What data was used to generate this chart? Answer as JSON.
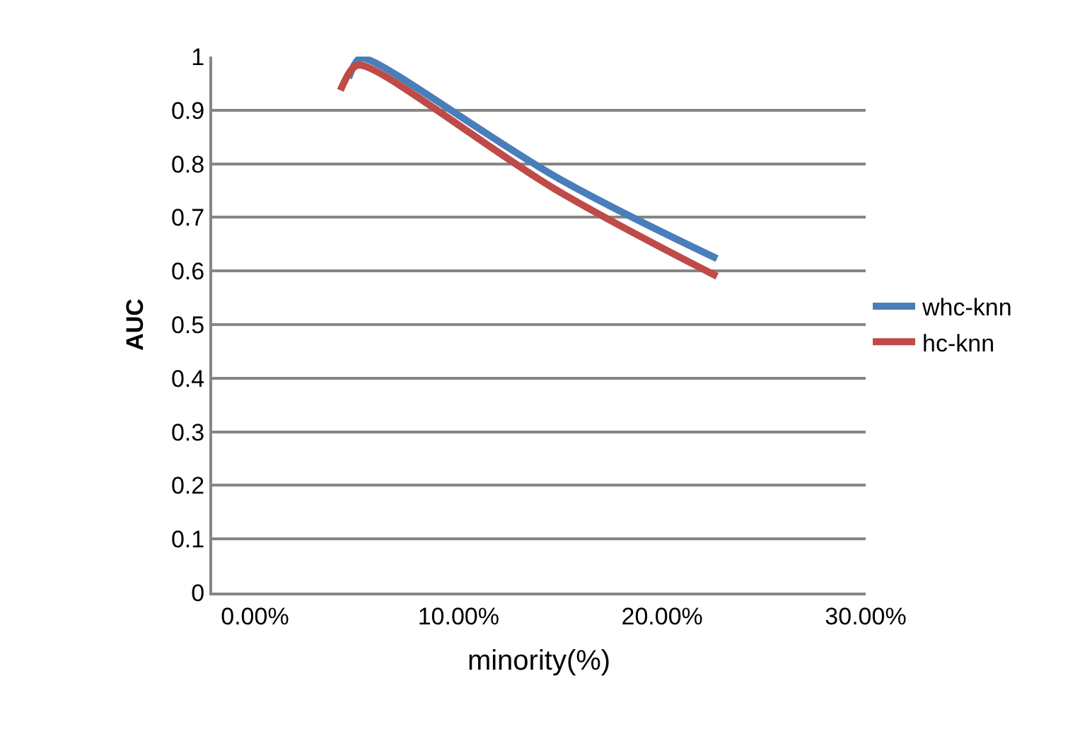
{
  "chart_data": {
    "type": "line",
    "xlabel": "minority(%)",
    "ylabel": "AUC",
    "xlim": [
      -0.021,
      0.3
    ],
    "xticks": [
      {
        "value": 0,
        "label": "0.00%"
      },
      {
        "value": 0.1,
        "label": "10.00%"
      },
      {
        "value": 0.2,
        "label": "20.00%"
      },
      {
        "value": 0.3,
        "label": "30.00%"
      }
    ],
    "ylim": [
      0,
      1
    ],
    "yticks": [
      0,
      0.1,
      0.2,
      0.3,
      0.4,
      0.5,
      0.6,
      0.7,
      0.8,
      0.9,
      1
    ],
    "grid": "y",
    "legend": "right",
    "marker": "none",
    "line_style": "solid",
    "series": [
      {
        "name": "whc-knn",
        "color": "#4a7ebb",
        "x": [
          0.046,
          0.051,
          0.055,
          0.149,
          0.227
        ],
        "values": [
          0.96,
          0.995,
          0.995,
          0.773,
          0.623
        ]
      },
      {
        "name": "hc-knn",
        "color": "#be4b48",
        "x": [
          0.042,
          0.048,
          0.052,
          0.149,
          0.227
        ],
        "values": [
          0.937,
          0.978,
          0.984,
          0.749,
          0.59
        ]
      }
    ]
  }
}
